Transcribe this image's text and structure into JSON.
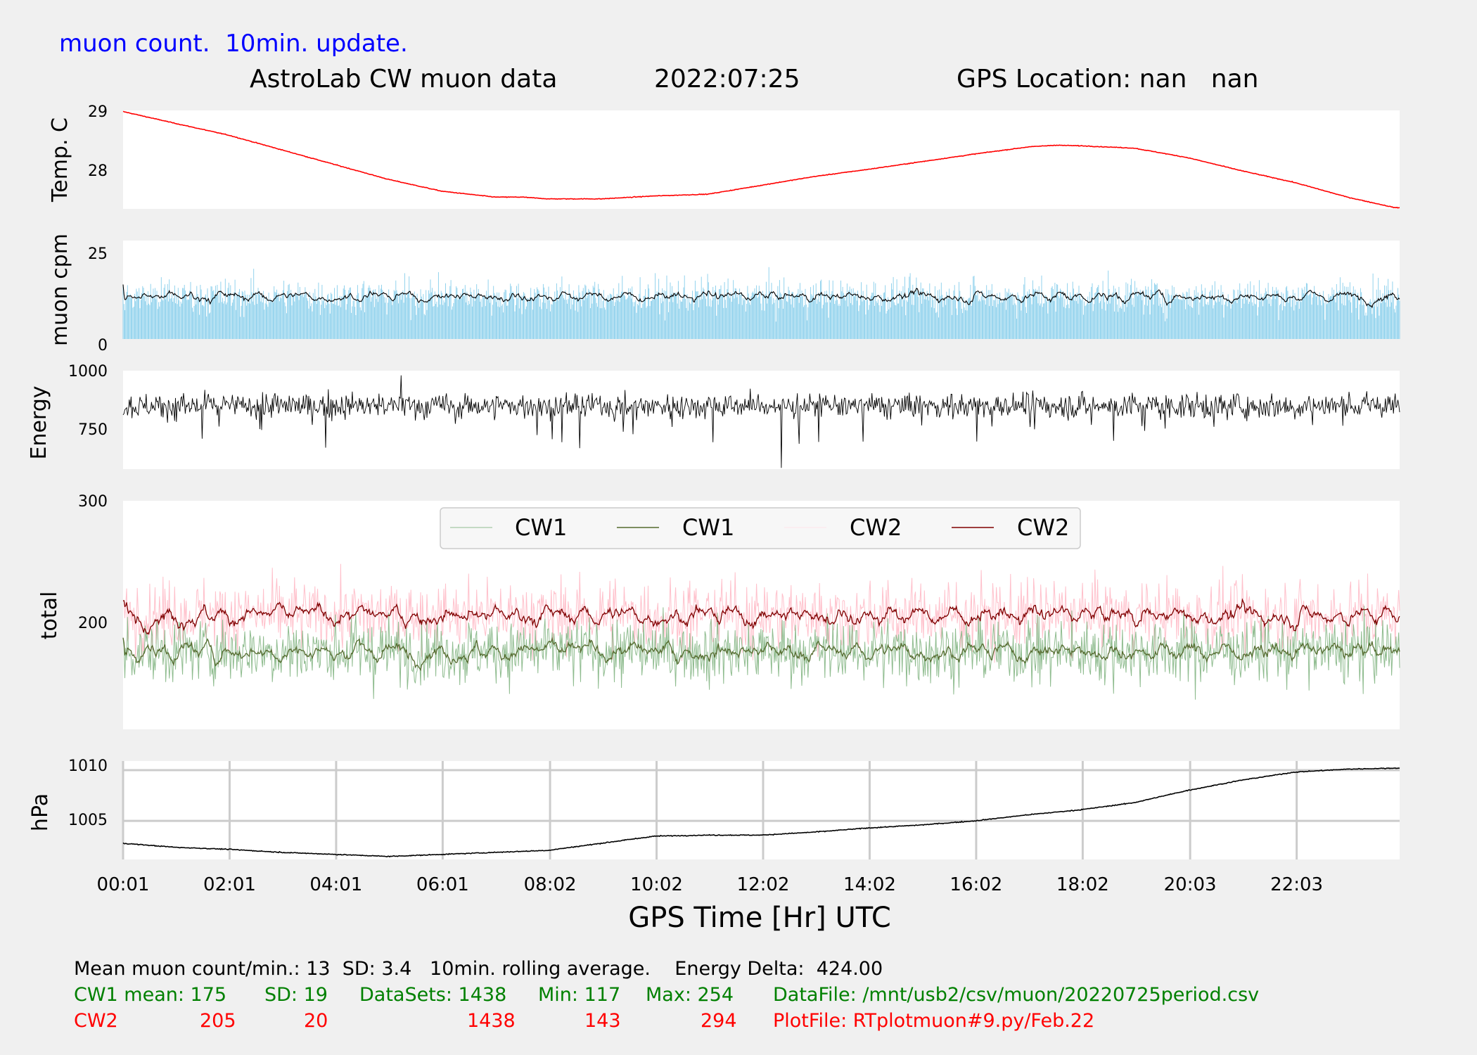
{
  "header": {
    "top_note": "muon count.  10min. update.",
    "title_left": "AstroLab CW muon data",
    "title_date": "2022:07:25",
    "title_gps": "GPS Location: nan   nan"
  },
  "colors": {
    "temp_line": "#ff0000",
    "muon_bars": "#87ceeb",
    "cw1_raw": "#8fbc8f",
    "cw1_avg": "#556b2f",
    "cw2_raw": "#ffc0cb",
    "cw2_avg": "#800000",
    "note_blue": "#0000ff",
    "info_green": "#008000",
    "info_red": "#ff0000"
  },
  "chart_data": [
    {
      "type": "line",
      "ylabel": "Temp. C",
      "yticks": [
        "29",
        "28"
      ],
      "ylim": [
        27.35,
        29.02
      ],
      "x_hours": [
        0.02,
        1,
        2,
        3,
        4,
        5,
        6,
        7,
        7.5,
        8,
        9,
        10,
        11,
        12,
        13,
        14,
        15,
        16,
        17,
        17.5,
        18,
        19,
        20,
        21,
        22,
        23,
        23.9
      ],
      "values": [
        29.0,
        28.8,
        28.6,
        28.35,
        28.1,
        27.85,
        27.65,
        27.55,
        27.55,
        27.52,
        27.52,
        27.57,
        27.6,
        27.75,
        27.9,
        28.02,
        28.15,
        28.28,
        28.4,
        28.43,
        28.42,
        28.38,
        28.22,
        28.0,
        27.8,
        27.55,
        27.37
      ],
      "series": [
        {
          "name": "Temp. C"
        }
      ]
    },
    {
      "type": "bar",
      "ylabel": "muon cpm",
      "yticks": [
        "25",
        "0"
      ],
      "ylim": [
        0,
        30
      ],
      "mean": 13,
      "sd": 3.4,
      "rolling_average": "10min.",
      "n_points": 1438
    },
    {
      "type": "line",
      "ylabel": "Energy",
      "yticks": [
        "1000",
        "750"
      ],
      "ylim": [
        600,
        1020
      ],
      "baseline": 870,
      "min": 605,
      "max": 1000
    },
    {
      "type": "line",
      "ylabel": "total",
      "yticks": [
        "300",
        "200"
      ],
      "ylim": [
        110,
        300
      ],
      "legend": [
        "CW1",
        "CW1",
        "CW2",
        "CW2"
      ],
      "legend_position": "top-center",
      "series": [
        {
          "name": "CW1",
          "mean": 175,
          "sd": 19,
          "min": 117,
          "max": 254
        },
        {
          "name": "CW2",
          "mean": 205,
          "sd": 20,
          "min": 143,
          "max": 294
        }
      ]
    },
    {
      "type": "line",
      "ylabel": "hPa",
      "yticks": [
        "1010",
        "1005"
      ],
      "ylim": [
        1001.2,
        1010.9
      ],
      "grid": true,
      "x_hours": [
        0,
        1,
        2,
        3,
        4,
        5,
        6,
        7,
        8,
        9,
        10,
        11,
        12,
        13,
        14,
        15,
        16,
        17,
        18,
        19,
        20,
        21,
        22,
        23,
        23.9
      ],
      "values": [
        1002.8,
        1002.4,
        1002.2,
        1001.9,
        1001.7,
        1001.5,
        1001.7,
        1001.9,
        1002.1,
        1002.8,
        1003.5,
        1003.6,
        1003.6,
        1003.9,
        1004.3,
        1004.6,
        1005.0,
        1005.6,
        1006.1,
        1006.8,
        1008.0,
        1009.0,
        1009.8,
        1010.1,
        1010.2
      ]
    }
  ],
  "x_axis": {
    "label": "GPS Time  [Hr] UTC",
    "ticks": [
      "00:01",
      "02:01",
      "04:01",
      "06:01",
      "08:02",
      "10:02",
      "12:02",
      "14:02",
      "16:02",
      "18:02",
      "20:03",
      "22:03"
    ],
    "tick_hours": [
      0.017,
      2.017,
      4.017,
      6.017,
      8.033,
      10.033,
      12.033,
      14.033,
      16.033,
      18.033,
      20.05,
      22.05
    ],
    "range_hours": [
      0.017,
      23.983
    ]
  },
  "footer": {
    "line1": "Mean muon count/min.: 13  SD: 3.4   10min. rolling average.    Energy Delta:  424.00",
    "cw1": {
      "name": "CW1 mean: 175",
      "sd": "SD: 19",
      "datasets": "DataSets: 1438",
      "min": "Min: 117",
      "max": "Max: 254",
      "file": "DataFile: /mnt/usb2/csv/muon/20220725period.csv"
    },
    "cw2": {
      "name": "CW2",
      "mean": "205",
      "sd": "20",
      "datasets": "1438",
      "min": "143",
      "max": "294",
      "file": "PlotFile: RTplotmuon#9.py/Feb.22"
    }
  }
}
